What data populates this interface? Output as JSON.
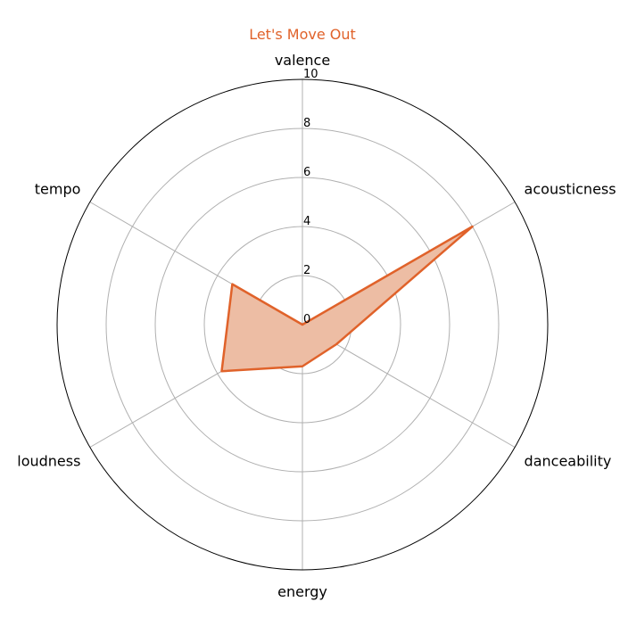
{
  "chart_data": {
    "type": "radar",
    "title": "Let's Move Out",
    "categories": [
      "valence",
      "acousticness",
      "danceability",
      "energy",
      "loudness",
      "tempo"
    ],
    "series": [
      {
        "values": [
          0.0,
          8.0,
          1.6,
          1.7,
          3.8,
          3.3
        ]
      }
    ],
    "rlim": [
      0,
      10
    ],
    "rticks": [
      "0",
      "2",
      "4",
      "6",
      "8",
      "10"
    ],
    "grid": true,
    "colors": {
      "series": "#e0622a",
      "fill": "#edbda4",
      "grid": "#b0b0b0",
      "title": "#e0622a",
      "outline": "#000000"
    }
  }
}
